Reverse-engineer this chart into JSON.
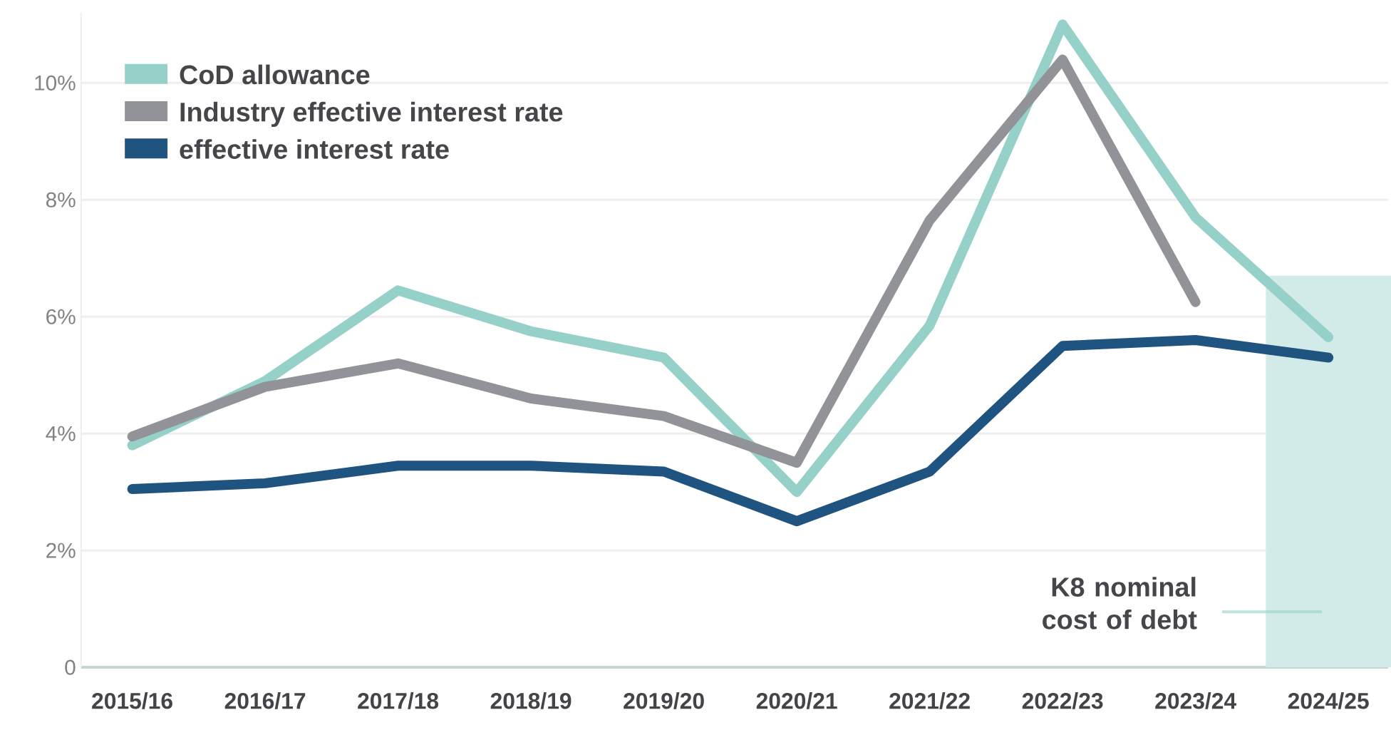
{
  "chart_data": {
    "type": "line",
    "categories": [
      "2015/16",
      "2016/17",
      "2017/18",
      "2018/19",
      "2019/20",
      "2020/21",
      "2021/22",
      "2022/23",
      "2023/24",
      "2024/25"
    ],
    "series": [
      {
        "name": "K8 nominal cost of debt",
        "type": "bar",
        "color": "#d3ebe8",
        "values": [
          null,
          null,
          null,
          null,
          null,
          null,
          null,
          null,
          null,
          6.7
        ]
      },
      {
        "name": "CoD allowance",
        "color": "#96d1c9",
        "values": [
          3.8,
          4.9,
          6.45,
          5.75,
          5.3,
          3.0,
          5.85,
          11.0,
          7.7,
          5.65
        ]
      },
      {
        "name": "Industry effective interest rate",
        "color": "#929399",
        "values": [
          3.95,
          4.8,
          5.2,
          4.6,
          4.3,
          3.5,
          7.65,
          10.4,
          6.25,
          null
        ]
      },
      {
        "name": "effective interest rate",
        "color": "#1f5380",
        "values": [
          3.05,
          3.15,
          3.45,
          3.45,
          3.35,
          2.5,
          3.35,
          5.5,
          5.6,
          5.3
        ]
      }
    ],
    "ylim": [
      0,
      11.2
    ],
    "yticks": [
      {
        "value": 0,
        "label": "0"
      },
      {
        "value": 2,
        "label": "2%"
      },
      {
        "value": 4,
        "label": "4%"
      },
      {
        "value": 6,
        "label": "6%"
      },
      {
        "value": 8,
        "label": "8%"
      },
      {
        "value": 10,
        "label": "10%"
      }
    ],
    "grid": "y",
    "legend": "top left",
    "line_style": "solid",
    "marker": "none"
  }
}
